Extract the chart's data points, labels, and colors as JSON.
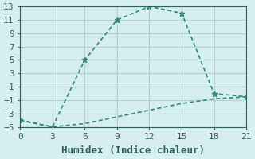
{
  "line1_x": [
    0,
    3,
    6,
    9,
    12,
    15,
    18,
    21
  ],
  "line1_y": [
    -4,
    -5,
    5,
    11,
    13,
    12,
    0,
    -0.5
  ],
  "line2_x": [
    0,
    3,
    6,
    9,
    12,
    15,
    18,
    21
  ],
  "line2_y": [
    -4,
    -5,
    -4.5,
    -3.5,
    -2.5,
    -1.5,
    -0.8,
    -0.5
  ],
  "line_color": "#2e8b7a",
  "bg_color": "#d6eeee",
  "xlabel": "Humidex (Indice chaleur)",
  "xlim": [
    0,
    21
  ],
  "ylim": [
    -5,
    13
  ],
  "xticks": [
    0,
    3,
    6,
    9,
    12,
    15,
    18,
    21
  ],
  "yticks": [
    -5,
    -3,
    -1,
    1,
    3,
    5,
    7,
    9,
    11,
    13
  ],
  "grid_color": "#b0d0d0",
  "font_color": "#2e5f5f",
  "xlabel_fontsize": 9,
  "tick_fontsize": 8
}
